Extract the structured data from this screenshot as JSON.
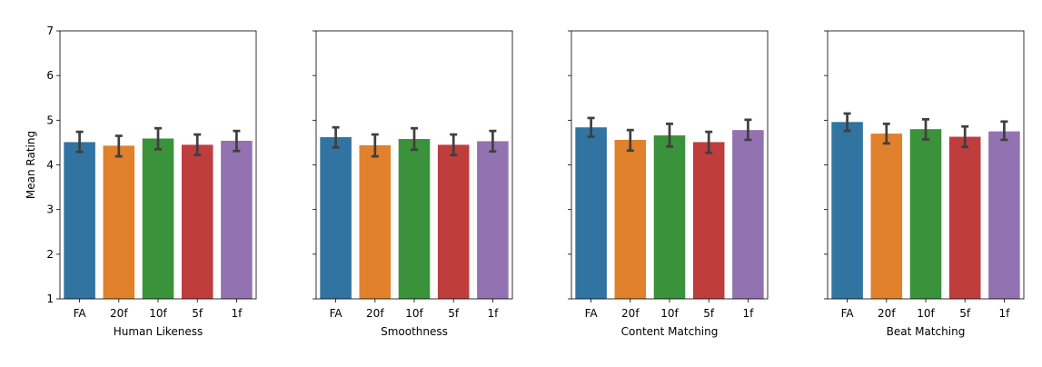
{
  "chart_data": {
    "type": "bar",
    "ylabel": "Mean Rating",
    "ylim": [
      1,
      7
    ],
    "yticks": [
      1,
      2,
      3,
      4,
      5,
      6,
      7
    ],
    "shared_y": true,
    "error_bars": true,
    "grid": false,
    "categories": [
      "FA",
      "20f",
      "10f",
      "5f",
      "1f"
    ],
    "colors": [
      "#3274a1",
      "#e1812c",
      "#3a923a",
      "#c03d3e",
      "#9372b2"
    ],
    "errorbar_color": "#3f3f3f",
    "panels": [
      {
        "xlabel": "Human Likeness",
        "values": [
          4.51,
          4.43,
          4.59,
          4.45,
          4.54
        ],
        "err_low": [
          4.29,
          4.19,
          4.35,
          4.22,
          4.31
        ],
        "err_high": [
          4.74,
          4.65,
          4.82,
          4.68,
          4.76
        ]
      },
      {
        "xlabel": "Smoothness",
        "values": [
          4.62,
          4.44,
          4.58,
          4.45,
          4.53
        ],
        "err_low": [
          4.39,
          4.19,
          4.34,
          4.22,
          4.3
        ],
        "err_high": [
          4.84,
          4.68,
          4.82,
          4.68,
          4.76
        ]
      },
      {
        "xlabel": "Content Matching",
        "values": [
          4.84,
          4.56,
          4.66,
          4.51,
          4.78
        ],
        "err_low": [
          4.63,
          4.32,
          4.41,
          4.27,
          4.56
        ],
        "err_high": [
          5.05,
          4.78,
          4.92,
          4.74,
          5.01
        ]
      },
      {
        "xlabel": "Beat Matching",
        "values": [
          4.96,
          4.7,
          4.8,
          4.63,
          4.75
        ],
        "err_low": [
          4.76,
          4.48,
          4.57,
          4.4,
          4.56
        ],
        "err_high": [
          5.15,
          4.92,
          5.02,
          4.86,
          4.97
        ]
      }
    ]
  }
}
